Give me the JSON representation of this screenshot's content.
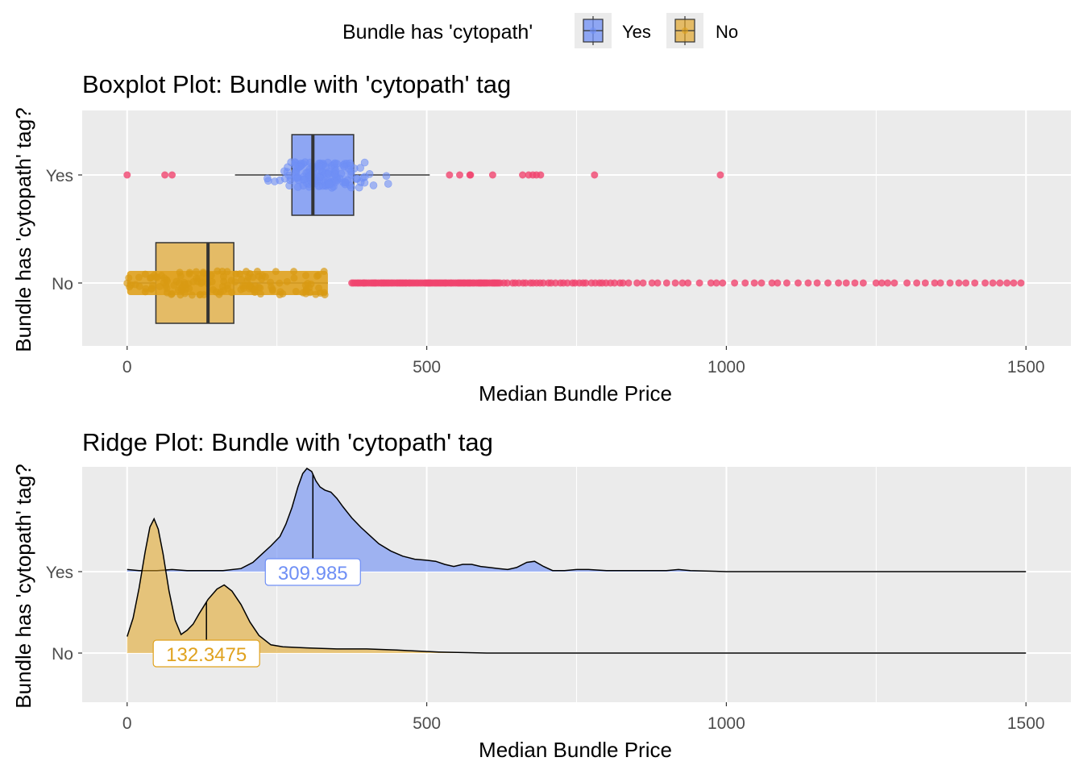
{
  "legend": {
    "title": "Bundle has 'cytopath'",
    "items": [
      {
        "label": "Yes",
        "color": "#6f8ff5"
      },
      {
        "label": "No",
        "color": "#e0a21e"
      }
    ]
  },
  "chart_data": [
    {
      "type": "boxplot",
      "title": "Boxplot Plot: Bundle with 'cytopath' tag",
      "xlabel": "Median Bundle Price",
      "ylabel": "Bundle has 'cytopath' tag?",
      "xlim": [
        -75,
        1575
      ],
      "x_ticks": [
        0,
        500,
        1000,
        1500
      ],
      "categories": [
        "Yes",
        "No"
      ],
      "outlier_color": "#f0446e",
      "series": [
        {
          "name": "Yes",
          "color": "#6f8ff5",
          "whisker_low": 180,
          "q1": 275,
          "median": 310,
          "q3": 378,
          "whisker_high": 505,
          "outliers": [
            0,
            63,
            75,
            538,
            555,
            572,
            573,
            610,
            660,
            670,
            677,
            683,
            690,
            780,
            990
          ],
          "jitter_min": 180,
          "jitter_max": 460
        },
        {
          "name": "No",
          "color": "#e0a21e",
          "whisker_low": 0,
          "q1": 48,
          "median": 135,
          "q3": 178,
          "whisker_high": 335,
          "outliers_range": [
            375,
            1500
          ],
          "jitter_min": 0,
          "jitter_max": 335
        }
      ]
    },
    {
      "type": "ridge",
      "title": "Ridge Plot: Bundle with 'cytopath' tag",
      "xlabel": "Median Bundle Price",
      "ylabel": "Bundle has 'cytopath' tag?",
      "xlim": [
        -75,
        1575
      ],
      "x_ticks": [
        0,
        500,
        1000,
        1500
      ],
      "categories": [
        "Yes",
        "No"
      ],
      "series": [
        {
          "name": "Yes",
          "color": "#6f8ff5",
          "median": 309.985,
          "median_label": "309.985",
          "density": [
            [
              0,
              0.02
            ],
            [
              20,
              0.01
            ],
            [
              50,
              0.01
            ],
            [
              75,
              0.02
            ],
            [
              100,
              0.01
            ],
            [
              130,
              0.01
            ],
            [
              160,
              0.01
            ],
            [
              190,
              0.03
            ],
            [
              210,
              0.09
            ],
            [
              225,
              0.17
            ],
            [
              240,
              0.25
            ],
            [
              255,
              0.34
            ],
            [
              265,
              0.46
            ],
            [
              275,
              0.62
            ],
            [
              285,
              0.82
            ],
            [
              293,
              0.95
            ],
            [
              300,
              1.0
            ],
            [
              308,
              0.97
            ],
            [
              315,
              0.88
            ],
            [
              322,
              0.82
            ],
            [
              330,
              0.79
            ],
            [
              340,
              0.77
            ],
            [
              350,
              0.71
            ],
            [
              360,
              0.63
            ],
            [
              375,
              0.52
            ],
            [
              390,
              0.43
            ],
            [
              405,
              0.35
            ],
            [
              420,
              0.27
            ],
            [
              440,
              0.2
            ],
            [
              460,
              0.15
            ],
            [
              480,
              0.12
            ],
            [
              500,
              0.11
            ],
            [
              515,
              0.1
            ],
            [
              530,
              0.07
            ],
            [
              545,
              0.05
            ],
            [
              560,
              0.07
            ],
            [
              575,
              0.07
            ],
            [
              590,
              0.05
            ],
            [
              605,
              0.04
            ],
            [
              620,
              0.03
            ],
            [
              635,
              0.02
            ],
            [
              650,
              0.04
            ],
            [
              667,
              0.09
            ],
            [
              680,
              0.1
            ],
            [
              695,
              0.05
            ],
            [
              710,
              0.01
            ],
            [
              730,
              0.01
            ],
            [
              750,
              0.02
            ],
            [
              770,
              0.02
            ],
            [
              800,
              0.01
            ],
            [
              850,
              0.01
            ],
            [
              900,
              0.01
            ],
            [
              920,
              0.02
            ],
            [
              940,
              0.01
            ],
            [
              1000,
              0.0
            ],
            [
              1100,
              0.0
            ],
            [
              1200,
              0.0
            ],
            [
              1300,
              0.0
            ],
            [
              1500,
              0.0
            ]
          ]
        },
        {
          "name": "No",
          "color": "#e0a21e",
          "median": 132.3475,
          "median_label": "132.3475",
          "density": [
            [
              0,
              0.16
            ],
            [
              10,
              0.34
            ],
            [
              20,
              0.63
            ],
            [
              30,
              0.98
            ],
            [
              38,
              1.22
            ],
            [
              45,
              1.3
            ],
            [
              52,
              1.2
            ],
            [
              60,
              0.96
            ],
            [
              70,
              0.6
            ],
            [
              80,
              0.32
            ],
            [
              90,
              0.18
            ],
            [
              100,
              0.22
            ],
            [
              110,
              0.28
            ],
            [
              120,
              0.38
            ],
            [
              135,
              0.52
            ],
            [
              150,
              0.62
            ],
            [
              162,
              0.66
            ],
            [
              175,
              0.6
            ],
            [
              190,
              0.47
            ],
            [
              205,
              0.3
            ],
            [
              220,
              0.17
            ],
            [
              240,
              0.08
            ],
            [
              260,
              0.06
            ],
            [
              300,
              0.05
            ],
            [
              350,
              0.04
            ],
            [
              400,
              0.04
            ],
            [
              450,
              0.03
            ],
            [
              480,
              0.02
            ],
            [
              520,
              0.01
            ],
            [
              600,
              0.0
            ],
            [
              800,
              0.0
            ],
            [
              1000,
              0.0
            ],
            [
              1200,
              0.0
            ],
            [
              1500,
              0.0
            ]
          ]
        }
      ]
    }
  ]
}
